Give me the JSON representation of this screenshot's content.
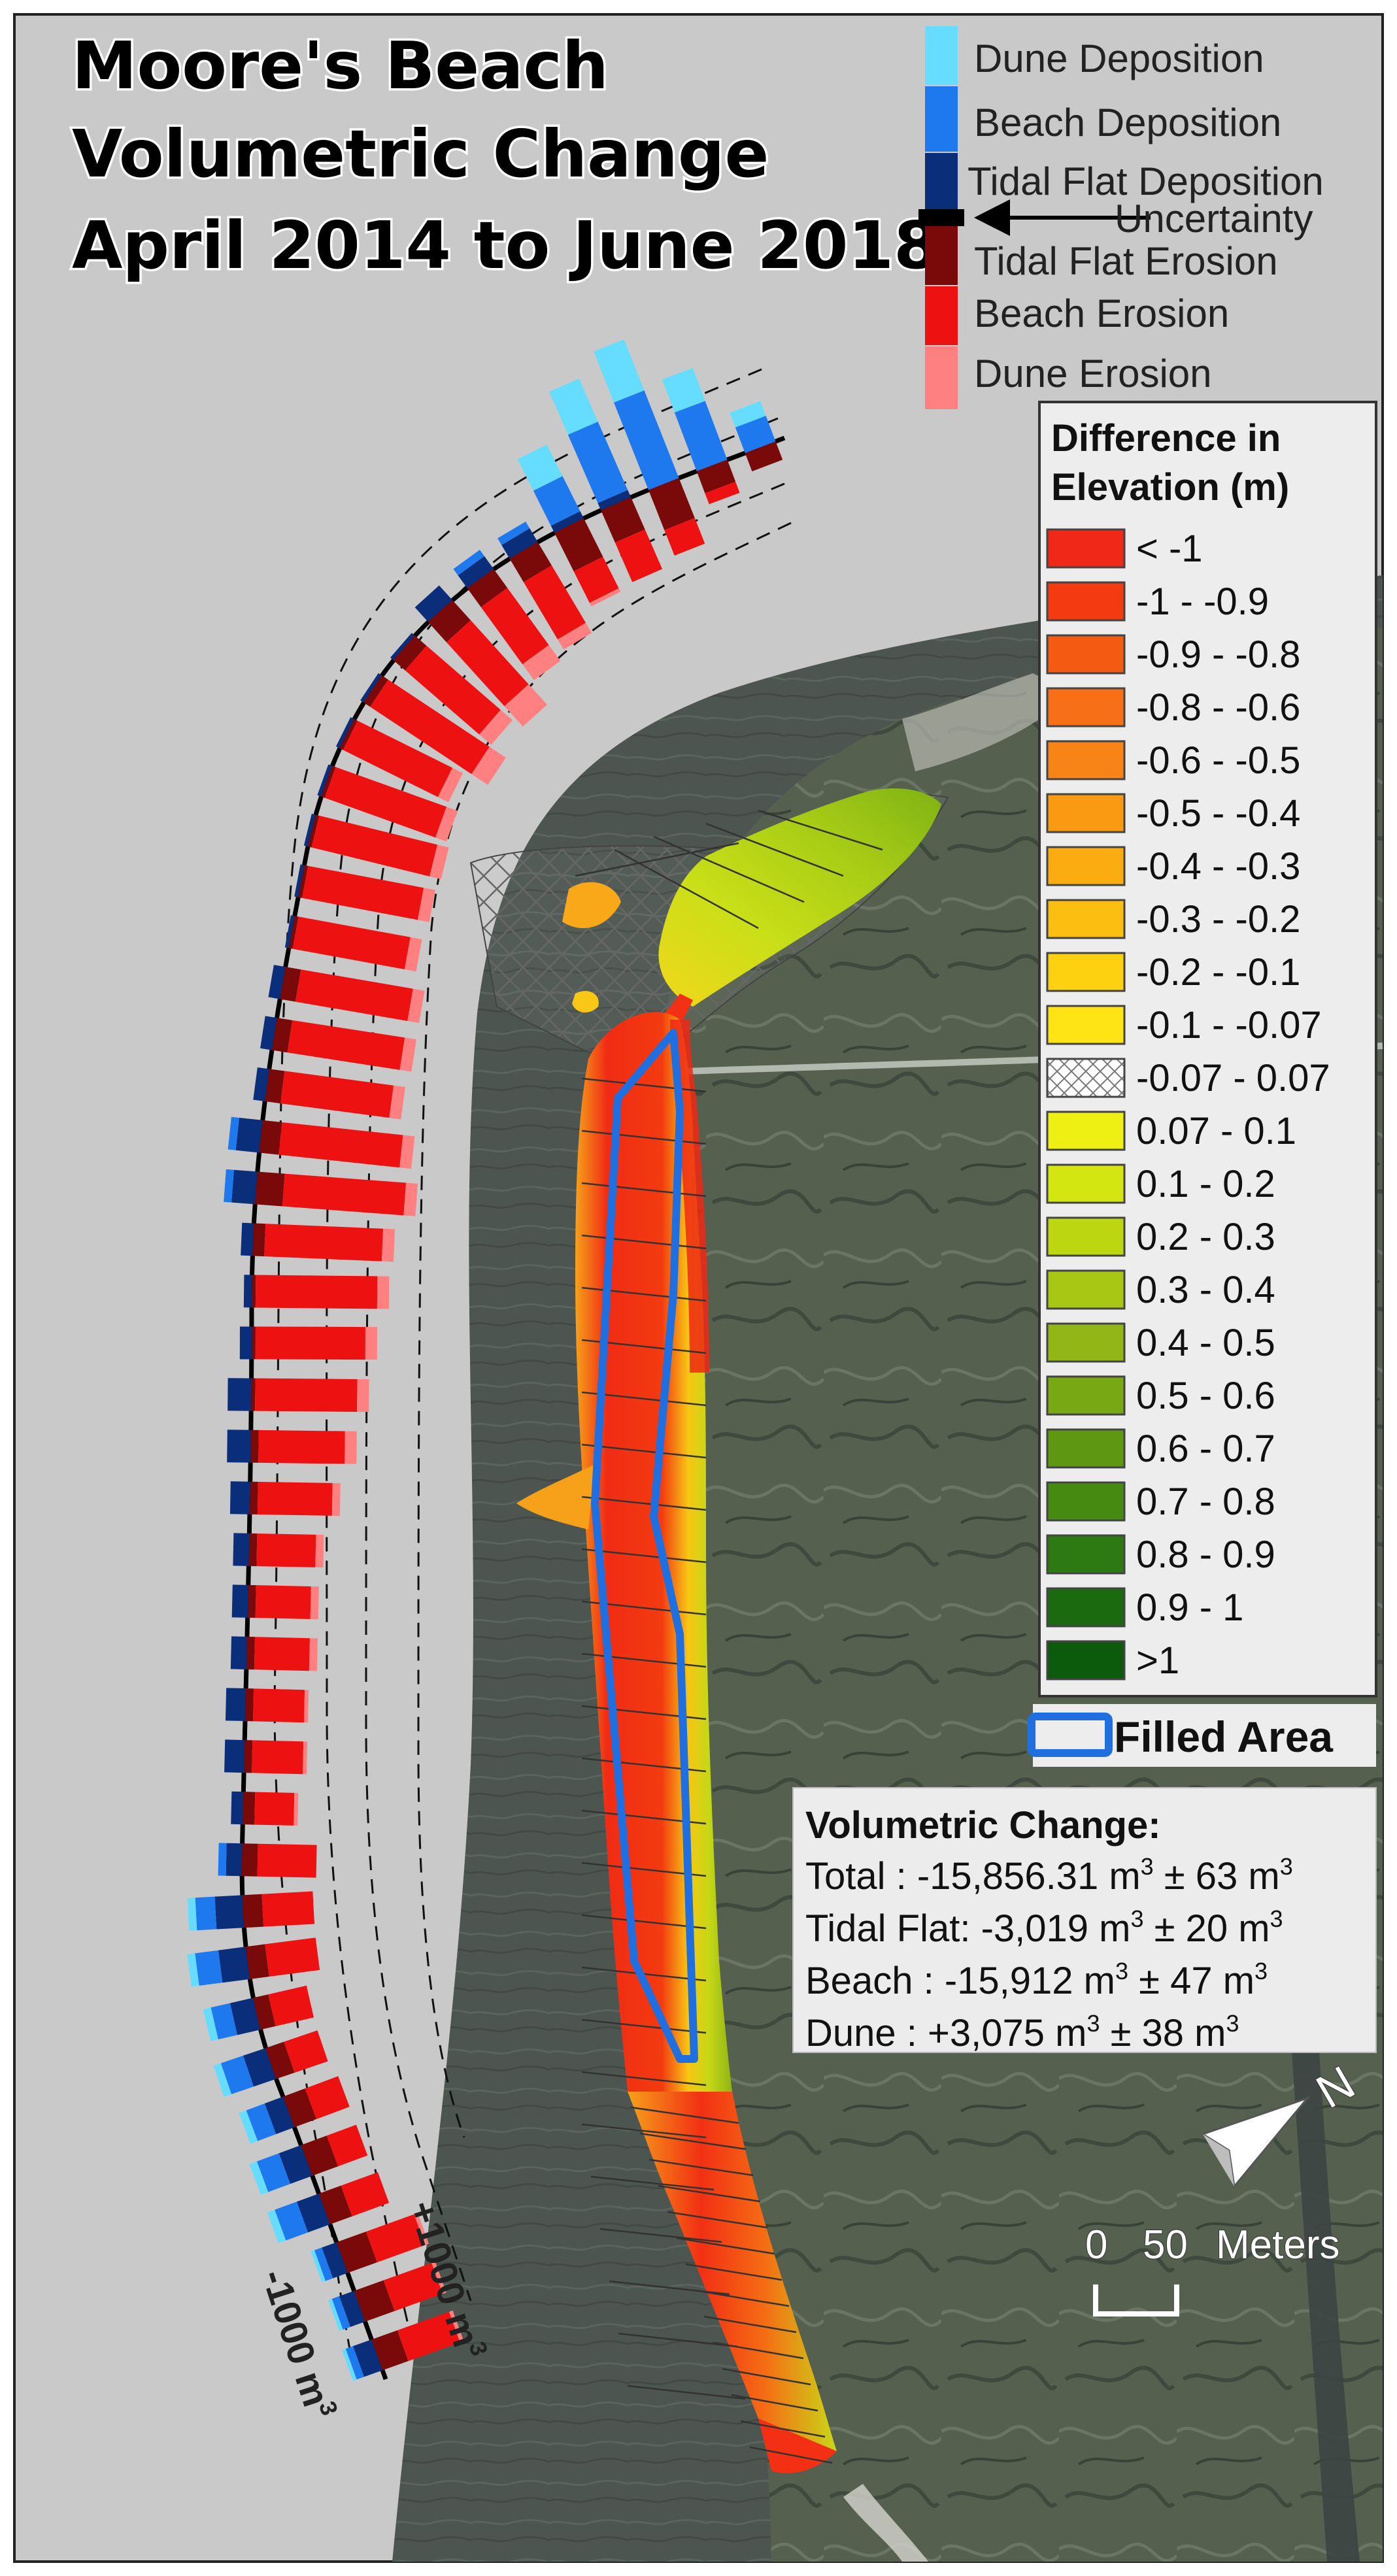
{
  "title": {
    "line1": "Moore's Beach",
    "line2": "Volumetric Change",
    "line3": "April 2014 to June 2018"
  },
  "type_legend": {
    "items": [
      {
        "label": "Dune Deposition",
        "color": "#66ddff"
      },
      {
        "label": "Beach Deposition",
        "color": "#1e78ee"
      },
      {
        "label": "Tidal Flat Deposition",
        "color": "#0a2e7a"
      },
      {
        "label": "Uncertainty",
        "color": "#000000"
      },
      {
        "label": "Tidal Flat Erosion",
        "color": "#7a0a0a"
      },
      {
        "label": "Beach Erosion",
        "color": "#ee1111"
      },
      {
        "label": "Dune Erosion",
        "color": "#ff8080"
      }
    ]
  },
  "elevation_legend": {
    "title_line1": "Difference in",
    "title_line2": "Elevation (m)",
    "classes": [
      {
        "label": "< -1",
        "color": "#f02818"
      },
      {
        "label": "-1 - -0.9",
        "color": "#f43a10"
      },
      {
        "label": "-0.9 - -0.8",
        "color": "#f55a12"
      },
      {
        "label": "-0.8 - -0.6",
        "color": "#f77018"
      },
      {
        "label": "-0.6 - -0.5",
        "color": "#f88418"
      },
      {
        "label": "-0.5 - -0.4",
        "color": "#fa9a12"
      },
      {
        "label": "-0.4 - -0.3",
        "color": "#fbac10"
      },
      {
        "label": "-0.3 - -0.2",
        "color": "#fcbe10"
      },
      {
        "label": "-0.2 - -0.1",
        "color": "#fdd010"
      },
      {
        "label": "-0.1 - -0.07",
        "color": "#fee414"
      },
      {
        "label": "-0.07 - 0.07",
        "color": "hatch"
      },
      {
        "label": "0.07 - 0.1",
        "color": "#eef014"
      },
      {
        "label": "0.1 - 0.2",
        "color": "#d4e612"
      },
      {
        "label": "0.2 - 0.3",
        "color": "#bcd612"
      },
      {
        "label": "0.3 - 0.4",
        "color": "#a8c614"
      },
      {
        "label": "0.4 - 0.5",
        "color": "#92b616"
      },
      {
        "label": "0.5 - 0.6",
        "color": "#78a814"
      },
      {
        "label": "0.6 - 0.7",
        "color": "#5e9812"
      },
      {
        "label": "0.7 - 0.8",
        "color": "#468a12"
      },
      {
        "label": "0.8 - 0.9",
        "color": "#2e7a12"
      },
      {
        "label": "0.9 - 1",
        "color": "#1c6a10"
      },
      {
        "label": ">1",
        "color": "#0c5a0c"
      }
    ]
  },
  "filled_area": {
    "label": "Filled Area",
    "color": "#1f6fe0"
  },
  "volumetric": {
    "heading": "Volumetric Change:",
    "rows": [
      {
        "label": "Total :",
        "value": "-15,856.31 m",
        "unc": "63 m"
      },
      {
        "label": "Tidal Flat:",
        "value": "-3,019 m",
        "unc": "20 m"
      },
      {
        "label": "Beach :",
        "value": "-15,912 m",
        "unc": "47 m"
      },
      {
        "label": "Dune :",
        "value": "+3,075 m",
        "unc": "38 m"
      }
    ],
    "sup": "3",
    "pm": "±"
  },
  "scale": {
    "zero": "0",
    "value": "50",
    "unit": "Meters"
  },
  "north_arrow": {
    "letter": "N"
  },
  "transect_axis": {
    "left": "-1000 m",
    "right": "+1000 m",
    "sup": "3"
  },
  "transect_bars": [
    {
      "neg": [
        0,
        0,
        10
      ],
      "pos": [
        0,
        14,
        8
      ]
    },
    {
      "neg": [
        0,
        6,
        12
      ],
      "pos": [
        0,
        32,
        18
      ]
    },
    {
      "neg": [
        0,
        14,
        22
      ],
      "pos": [
        0,
        48,
        28
      ]
    },
    {
      "neg": [
        0,
        22,
        18
      ],
      "pos": [
        4,
        38,
        24
      ]
    },
    {
      "neg": [
        2,
        18,
        22
      ],
      "pos": [
        4,
        20,
        18
      ]
    },
    {
      "neg": [
        6,
        34,
        14
      ],
      "pos": [
        8,
        4,
        0
      ]
    },
    {
      "neg": [
        10,
        36,
        12
      ],
      "pos": [
        8,
        4,
        0
      ]
    },
    {
      "neg": [
        14,
        44,
        14
      ],
      "pos": [
        10,
        0,
        0
      ]
    },
    {
      "neg": [
        8,
        50,
        8
      ],
      "pos": [
        2,
        0,
        0
      ]
    },
    {
      "neg": [
        10,
        62,
        4
      ],
      "pos": [
        2,
        0,
        0
      ]
    },
    {
      "neg": [
        6,
        54,
        2
      ],
      "pos": [
        2,
        0,
        0
      ]
    },
    {
      "neg": [
        6,
        60,
        2
      ],
      "pos": [
        2,
        0,
        0
      ]
    },
    {
      "neg": [
        6,
        62,
        2
      ],
      "pos": [
        2,
        0,
        0
      ]
    },
    {
      "neg": [
        6,
        60,
        2
      ],
      "pos": [
        2,
        0,
        0
      ]
    },
    {
      "neg": [
        6,
        58,
        2
      ],
      "pos": [
        2,
        0,
        0
      ]
    },
    {
      "neg": [
        6,
        58,
        8
      ],
      "pos": [
        6,
        0,
        0
      ]
    },
    {
      "neg": [
        6,
        58,
        8
      ],
      "pos": [
        6,
        0,
        0
      ]
    },
    {
      "neg": [
        6,
        56,
        8
      ],
      "pos": [
        6,
        0,
        0
      ]
    },
    {
      "neg": [
        6,
        62,
        10
      ],
      "pos": [
        12,
        4,
        0
      ]
    },
    {
      "neg": [
        6,
        62,
        14
      ],
      "pos": [
        12,
        4,
        0
      ]
    },
    {
      "neg": [
        6,
        60,
        6
      ],
      "pos": [
        6,
        0,
        0
      ]
    },
    {
      "neg": [
        6,
        62,
        2
      ],
      "pos": [
        4,
        0,
        0
      ]
    },
    {
      "neg": [
        6,
        56,
        2
      ],
      "pos": [
        6,
        0,
        0
      ]
    },
    {
      "neg": [
        6,
        52,
        2
      ],
      "pos": [
        12,
        0,
        0
      ]
    },
    {
      "neg": [
        6,
        44,
        4
      ],
      "pos": [
        12,
        0,
        0
      ]
    },
    {
      "neg": [
        4,
        38,
        4
      ],
      "pos": [
        10,
        0,
        0
      ]
    },
    {
      "neg": [
        4,
        30,
        4
      ],
      "pos": [
        8,
        0,
        0
      ]
    },
    {
      "neg": [
        4,
        28,
        4
      ],
      "pos": [
        8,
        0,
        0
      ]
    },
    {
      "neg": [
        4,
        28,
        4
      ],
      "pos": [
        8,
        0,
        0
      ]
    },
    {
      "neg": [
        2,
        26,
        4
      ],
      "pos": [
        10,
        0,
        0
      ]
    },
    {
      "neg": [
        2,
        26,
        4
      ],
      "pos": [
        10,
        0,
        0
      ]
    },
    {
      "neg": [
        2,
        20,
        6
      ],
      "pos": [
        6,
        0,
        0
      ]
    },
    {
      "neg": [
        0,
        30,
        8
      ],
      "pos": [
        8,
        4,
        0
      ]
    },
    {
      "neg": [
        0,
        26,
        10
      ],
      "pos": [
        14,
        10,
        4
      ]
    },
    {
      "neg": [
        0,
        26,
        10
      ],
      "pos": [
        14,
        12,
        4
      ]
    },
    {
      "neg": [
        0,
        20,
        8
      ],
      "pos": [
        12,
        10,
        4
      ]
    },
    {
      "neg": [
        0,
        18,
        10
      ],
      "pos": [
        12,
        12,
        4
      ]
    },
    {
      "neg": [
        0,
        18,
        12
      ],
      "pos": [
        10,
        10,
        4
      ]
    },
    {
      "neg": [
        0,
        16,
        14
      ],
      "pos": [
        12,
        12,
        4
      ]
    },
    {
      "neg": [
        0,
        20,
        12
      ],
      "pos": [
        12,
        12,
        4
      ]
    },
    {
      "neg": [
        2,
        26,
        16
      ],
      "pos": [
        8,
        4,
        2
      ]
    },
    {
      "neg": [
        2,
        26,
        16
      ],
      "pos": [
        8,
        4,
        2
      ]
    },
    {
      "neg": [
        2,
        28,
        14
      ],
      "pos": [
        10,
        4,
        2
      ]
    }
  ]
}
